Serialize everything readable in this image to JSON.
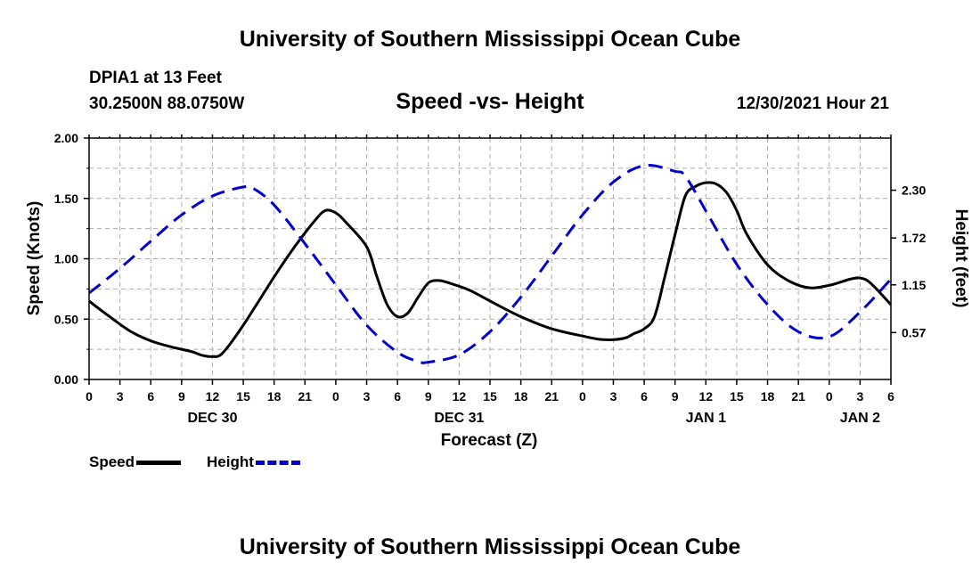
{
  "header": {
    "title": "University of Southern Mississippi Ocean Cube",
    "station": "DPIA1 at 13 Feet",
    "coords": "30.2500N  88.0750W",
    "subtitle": "Speed -vs- Height",
    "datetime": "12/30/2021 Hour 21"
  },
  "footer": {
    "title": "University of Southern Mississippi Ocean Cube"
  },
  "legend": {
    "speed_label": "Speed",
    "height_label": "Height"
  },
  "chart_data": {
    "type": "line",
    "title": "Speed -vs- Height",
    "xlabel": "Forecast (Z)",
    "ylabel_left": "Speed (Knots)",
    "ylabel_right": "Height (feet)",
    "x_unit": "hours from 00Z Dec 30",
    "xlim": [
      0,
      78
    ],
    "ylim_left": [
      0,
      2.0
    ],
    "ylim_right": [
      0,
      2.934
    ],
    "x_ticks": [
      0,
      3,
      6,
      9,
      12,
      15,
      18,
      21,
      24,
      27,
      30,
      33,
      36,
      39,
      42,
      45,
      48,
      51,
      54,
      57,
      60,
      63,
      66,
      69,
      72,
      75,
      78
    ],
    "x_tick_labels": [
      "0",
      "3",
      "6",
      "9",
      "12",
      "15",
      "18",
      "21",
      "0",
      "3",
      "6",
      "9",
      "12",
      "15",
      "18",
      "21",
      "0",
      "3",
      "6",
      "9",
      "12",
      "15",
      "18",
      "21",
      "0",
      "3",
      "6"
    ],
    "day_labels": [
      {
        "x": 12,
        "label": "DEC 30"
      },
      {
        "x": 36,
        "label": "DEC 31"
      },
      {
        "x": 60,
        "label": "JAN 1"
      },
      {
        "x": 75,
        "label": "JAN 2"
      }
    ],
    "y_left_ticks": [
      0,
      0.5,
      1.0,
      1.5,
      2.0
    ],
    "y_left_tick_labels": [
      "0.00",
      "0.50",
      "1.00",
      "1.50",
      "2.00"
    ],
    "y_right_ticks": [
      0.57,
      1.15,
      1.72,
      2.3
    ],
    "y_right_tick_labels": [
      "0.57",
      "1.15",
      "1.72",
      "2.30"
    ],
    "grid": true,
    "legend_position": "bottom-left",
    "series": [
      {
        "name": "Speed",
        "axis": "left",
        "color": "#000000",
        "style": "solid",
        "x": [
          0,
          2,
          4,
          6,
          8,
          10,
          11,
          12,
          13,
          15,
          18,
          20,
          22,
          23,
          24,
          25,
          27,
          28,
          29,
          30,
          31,
          32,
          33,
          34,
          35,
          37,
          39,
          42,
          45,
          48,
          50,
          52,
          53,
          54,
          55,
          56,
          57,
          58,
          59,
          60,
          61,
          62,
          63,
          64,
          66,
          68,
          70,
          72,
          74,
          75,
          76,
          78
        ],
        "y": [
          0.65,
          0.52,
          0.4,
          0.32,
          0.27,
          0.23,
          0.2,
          0.19,
          0.22,
          0.45,
          0.85,
          1.1,
          1.32,
          1.4,
          1.38,
          1.3,
          1.1,
          0.85,
          0.62,
          0.52,
          0.55,
          0.68,
          0.8,
          0.82,
          0.8,
          0.74,
          0.65,
          0.52,
          0.42,
          0.36,
          0.33,
          0.34,
          0.38,
          0.42,
          0.52,
          0.85,
          1.2,
          1.52,
          1.6,
          1.63,
          1.62,
          1.55,
          1.4,
          1.2,
          0.95,
          0.82,
          0.76,
          0.78,
          0.83,
          0.84,
          0.8,
          0.62
        ]
      },
      {
        "name": "Height",
        "axis": "right",
        "color": "#0000cc",
        "style": "dashed",
        "x": [
          0,
          3,
          6,
          9,
          12,
          15,
          16,
          18,
          21,
          24,
          27,
          30,
          32,
          33,
          36,
          39,
          42,
          45,
          48,
          51,
          54,
          57,
          58,
          60,
          63,
          66,
          69,
          72,
          75,
          78
        ],
        "y": [
          1.05,
          1.35,
          1.68,
          2.0,
          2.23,
          2.34,
          2.32,
          2.12,
          1.65,
          1.15,
          0.66,
          0.33,
          0.22,
          0.21,
          0.3,
          0.58,
          1.0,
          1.5,
          2.0,
          2.4,
          2.6,
          2.53,
          2.47,
          2.05,
          1.4,
          0.91,
          0.58,
          0.52,
          0.82,
          1.22
        ]
      }
    ]
  }
}
